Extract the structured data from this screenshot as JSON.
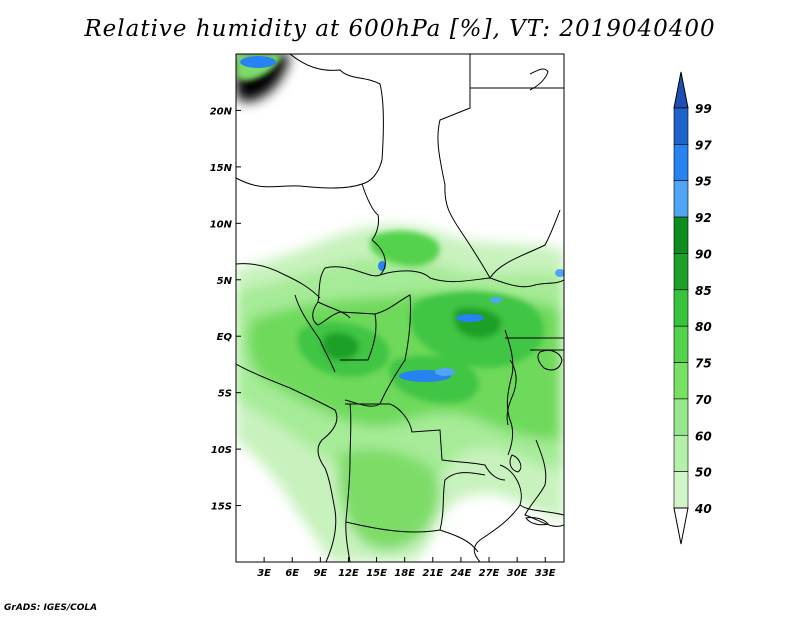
{
  "title": "Relative humidity at 600hPa [%], VT: 2019040400",
  "credit": "GrADS: IGES/COLA",
  "map": {
    "lon_range": [
      0,
      35
    ],
    "lat_range": [
      -20,
      25
    ],
    "lat_ticks": [
      {
        "value": 20,
        "label": "20N"
      },
      {
        "value": 15,
        "label": "15N"
      },
      {
        "value": 10,
        "label": "10N"
      },
      {
        "value": 5,
        "label": "5N"
      },
      {
        "value": 0,
        "label": "EQ"
      },
      {
        "value": -5,
        "label": "5S"
      },
      {
        "value": -10,
        "label": "10S"
      },
      {
        "value": -15,
        "label": "15S"
      }
    ],
    "lon_ticks": [
      {
        "value": 3,
        "label": "3E"
      },
      {
        "value": 6,
        "label": "6E"
      },
      {
        "value": 9,
        "label": "9E"
      },
      {
        "value": 12,
        "label": "12E"
      },
      {
        "value": 15,
        "label": "15E"
      },
      {
        "value": 18,
        "label": "18E"
      },
      {
        "value": 21,
        "label": "21E"
      },
      {
        "value": 24,
        "label": "24E"
      },
      {
        "value": 27,
        "label": "27E"
      },
      {
        "value": 30,
        "label": "30E"
      },
      {
        "value": 33,
        "label": "33E"
      }
    ]
  },
  "colorbar": {
    "levels": [
      "99",
      "97",
      "95",
      "92",
      "90",
      "85",
      "80",
      "75",
      "70",
      "60",
      "50",
      "40"
    ],
    "colors": [
      "#1e64c8",
      "#2882f0",
      "#50a5f5",
      "#0f8c1e",
      "#1ea028",
      "#37c33c",
      "#55d24b",
      "#78e164",
      "#96e68c",
      "#b4f0aa",
      "#d2f5c8",
      "#f0fff0"
    ],
    "top_color": "#1e50b4",
    "bottom_color": "#ffffff"
  }
}
